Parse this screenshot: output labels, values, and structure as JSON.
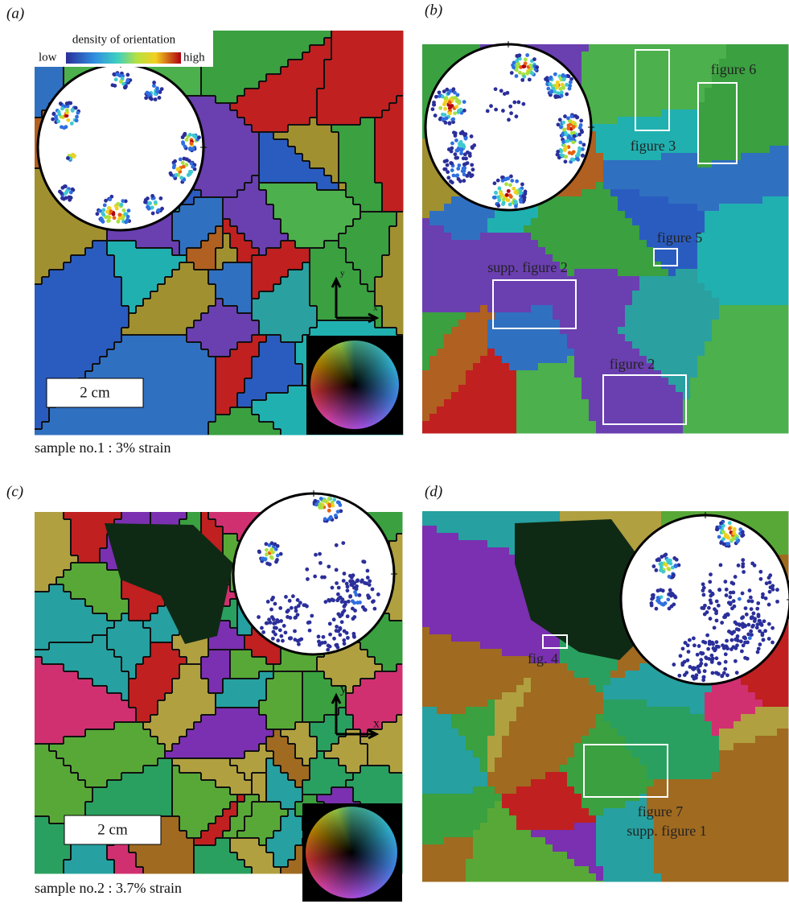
{
  "panels": [
    {
      "label": "(a)",
      "caption": "sample no.1 : 3% strain",
      "legend": {
        "title": "density of orientation",
        "low": "low",
        "high": "high"
      },
      "scale_bar": "2 cm",
      "axes": {
        "x": "x",
        "y": "y"
      }
    },
    {
      "label": "(b)",
      "annotations": [
        "figure 3",
        "figure 6",
        "figure 5",
        "supp. figure 2",
        "figure 2"
      ]
    },
    {
      "label": "(c)",
      "caption": "sample no.2 : 3.7% strain",
      "scale_bar": "2 cm",
      "axes": {
        "x": "x",
        "y": "y"
      }
    },
    {
      "label": "(d)",
      "annotations": [
        "fig. 4",
        "figure 7",
        "supp. figure 1"
      ]
    }
  ]
}
